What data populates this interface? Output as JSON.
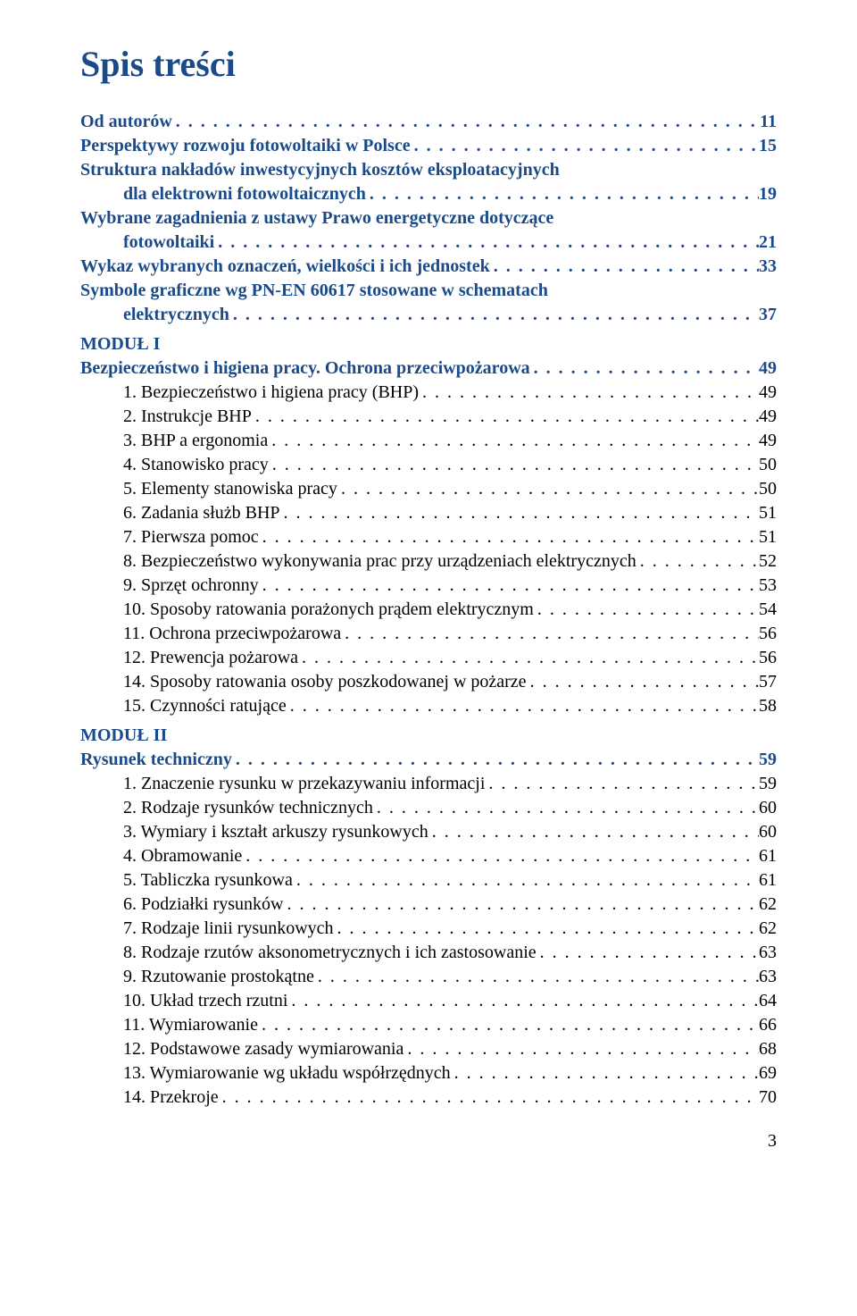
{
  "title": "Spis treści",
  "colors": {
    "accent": "#1a4a8a",
    "text": "#000000",
    "bg": "#ffffff"
  },
  "front": [
    {
      "label": "Od autorów",
      "page": "11",
      "bold": true,
      "blue": true
    },
    {
      "label": "Perspektywy rozwoju fotowoltaiki w Polsce",
      "page": "15",
      "bold": true,
      "blue": true
    },
    {
      "label": "Struktura nakładów inwestycyjnych kosztów eksploatacyjnych",
      "cont": "dla elektrowni fotowoltaicznych",
      "page": "19",
      "bold": true,
      "blue": true
    },
    {
      "label": "Wybrane zagadnienia z ustawy Prawo energetyczne dotyczące",
      "cont": "fotowoltaiki",
      "page": "21",
      "bold": true,
      "blue": true
    },
    {
      "label": "Wykaz wybranych oznaczeń, wielkości i ich jednostek",
      "page": "33",
      "bold": true,
      "blue": true
    },
    {
      "label": "Symbole graficzne wg PN-EN 60617 stosowane w schematach",
      "cont": "elektrycznych",
      "page": "37",
      "bold": true,
      "blue": true
    }
  ],
  "module1": {
    "head": "MODUŁ I",
    "title": {
      "label": "Bezpieczeństwo i higiena pracy. Ochrona przeciwpożarowa",
      "page": "49"
    },
    "items": [
      {
        "label": "1. Bezpieczeństwo i higiena pracy (BHP)",
        "page": "49"
      },
      {
        "label": "2. Instrukcje BHP",
        "page": "49"
      },
      {
        "label": "3. BHP a ergonomia",
        "page": "49"
      },
      {
        "label": "4. Stanowisko pracy",
        "page": "50"
      },
      {
        "label": "5. Elementy stanowiska pracy",
        "page": "50"
      },
      {
        "label": "6. Zadania służb BHP",
        "page": "51"
      },
      {
        "label": "7. Pierwsza pomoc",
        "page": "51"
      },
      {
        "label": "8. Bezpieczeństwo wykonywania prac przy urządzeniach elektrycznych",
        "page": "52"
      },
      {
        "label": "9. Sprzęt ochronny",
        "page": "53"
      },
      {
        "label": "10. Sposoby ratowania porażonych prądem elektrycznym",
        "page": "54"
      },
      {
        "label": "11. Ochrona przeciwpożarowa",
        "page": "56"
      },
      {
        "label": "12. Prewencja pożarowa",
        "page": "56"
      },
      {
        "label": "14. Sposoby ratowania osoby poszkodowanej w pożarze",
        "page": "57"
      },
      {
        "label": "15. Czynności ratujące",
        "page": "58"
      }
    ]
  },
  "module2": {
    "head": "MODUŁ II",
    "title": {
      "label": "Rysunek techniczny",
      "page": "59"
    },
    "items": [
      {
        "label": "1. Znaczenie rysunku w przekazywaniu informacji",
        "page": "59"
      },
      {
        "label": "2. Rodzaje rysunków technicznych",
        "page": "60"
      },
      {
        "label": "3. Wymiary i kształt arkuszy rysunkowych",
        "page": "60"
      },
      {
        "label": "4. Obramowanie",
        "page": "61"
      },
      {
        "label": "5. Tabliczka rysunkowa",
        "page": "61"
      },
      {
        "label": "6. Podziałki rysunków",
        "page": "62"
      },
      {
        "label": "7. Rodzaje linii rysunkowych",
        "page": "62"
      },
      {
        "label": "8. Rodzaje rzutów aksonometrycznych i ich zastosowanie",
        "page": "63"
      },
      {
        "label": "9. Rzutowanie prostokątne",
        "page": "63"
      },
      {
        "label": "10. Układ trzech rzutni",
        "page": "64"
      },
      {
        "label": "11. Wymiarowanie",
        "page": "66"
      },
      {
        "label": "12. Podstawowe zasady wymiarowania",
        "page": "68"
      },
      {
        "label": "13. Wymiarowanie wg układu współrzędnych",
        "page": "69"
      },
      {
        "label": "14. Przekroje",
        "page": "70"
      }
    ]
  },
  "footer_page": "3"
}
